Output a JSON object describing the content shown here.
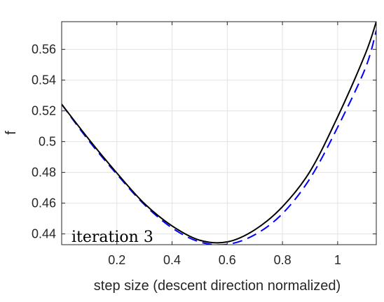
{
  "chart_data": {
    "type": "line",
    "title": "",
    "xlabel": "step size (descent direction normalized)",
    "ylabel": "f",
    "xlim": [
      0,
      1.14
    ],
    "ylim": [
      0.433,
      0.578
    ],
    "xticks": [
      0.2,
      0.4,
      0.6,
      0.8,
      1
    ],
    "xtick_labels": [
      "0.2",
      "0.4",
      "0.6",
      "0.8",
      "1"
    ],
    "yticks": [
      0.44,
      0.46,
      0.48,
      0.5,
      0.52,
      0.54,
      0.56
    ],
    "ytick_labels": [
      "0.44",
      "0.46",
      "0.48",
      "0.5",
      "0.52",
      "0.54",
      "0.56"
    ],
    "grid": true,
    "annotation": "iteration 3",
    "series": [
      {
        "style": "solid",
        "color": "#000000",
        "x": [
          0,
          0.1,
          0.2,
          0.3,
          0.4,
          0.5,
          0.6,
          0.7,
          0.8,
          0.9,
          1.0,
          1.1,
          1.14
        ],
        "y": [
          0.5243,
          0.5012,
          0.4796,
          0.4597,
          0.4452,
          0.4359,
          0.4348,
          0.4427,
          0.4577,
          0.4807,
          0.5161,
          0.5569,
          0.578
        ]
      },
      {
        "style": "dashed",
        "color": "#0000ff",
        "x": [
          0,
          0.1,
          0.2,
          0.3,
          0.4,
          0.5,
          0.6,
          0.7,
          0.8,
          0.9,
          1.0,
          1.1,
          1.14
        ],
        "y": [
          0.5243,
          0.5002,
          0.4788,
          0.459,
          0.4439,
          0.4348,
          0.4332,
          0.4395,
          0.4532,
          0.4761,
          0.5094,
          0.5476,
          0.5723
        ]
      }
    ]
  }
}
